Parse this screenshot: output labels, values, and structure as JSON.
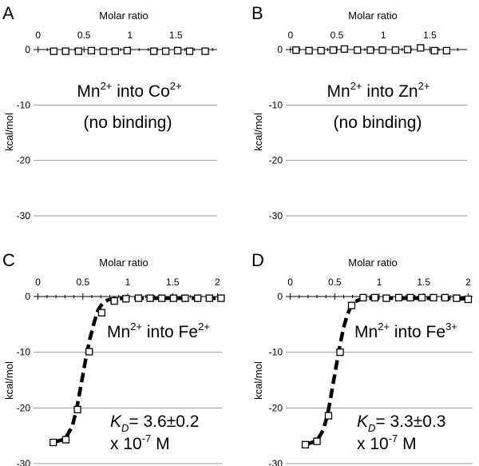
{
  "figure": {
    "background": "#ffffff"
  },
  "chart_data": [
    {
      "panel": "A",
      "type": "scatter",
      "xlabel": "Molar ratio",
      "ylabel": "kcal/mol",
      "xlim": [
        -0.05,
        1.95
      ],
      "ylim": [
        -30,
        0
      ],
      "x_ticks": [
        0,
        0.5,
        1,
        1.5
      ],
      "x_tick_labels": [
        "0",
        "0.5",
        "1",
        "1.5"
      ],
      "y_ticks": [
        0,
        -10,
        -20,
        -30
      ],
      "y_tick_labels": [
        "0",
        "-10",
        "-20",
        "-30"
      ],
      "grid": true,
      "series": [
        {
          "name": "titration",
          "x": [
            0.17,
            0.3,
            0.44,
            0.58,
            0.71,
            0.84,
            0.97,
            1.26,
            1.39,
            1.52,
            1.65,
            1.82
          ],
          "y": [
            -0.3,
            -0.3,
            -0.3,
            -0.2,
            -0.3,
            -0.3,
            -0.2,
            -0.3,
            -0.3,
            -0.2,
            -0.3,
            -0.3
          ]
        }
      ],
      "annotation": {
        "line1_prefix": "Mn",
        "line1_sup1": "2+",
        "line1_mid": " into Co",
        "line1_sup2": "2+",
        "line2": "(no binding)"
      }
    },
    {
      "panel": "B",
      "type": "scatter",
      "xlabel": "Molar ratio",
      "ylabel": "kcal/mol",
      "xlim": [
        -0.05,
        1.9
      ],
      "ylim": [
        -30,
        0
      ],
      "x_ticks": [
        0,
        0.5,
        1,
        1.5
      ],
      "x_tick_labels": [
        "0",
        "0.5",
        "1",
        "1.5"
      ],
      "y_ticks": [
        0,
        -10,
        -20,
        -30
      ],
      "y_tick_labels": [
        "0",
        "-10",
        "-20",
        "-30"
      ],
      "grid": true,
      "series": [
        {
          "name": "titration",
          "x": [
            0.06,
            0.2,
            0.33,
            0.46,
            0.58,
            0.72,
            0.86,
            0.99,
            1.13,
            1.26,
            1.4,
            1.55,
            1.68
          ],
          "y": [
            -0.1,
            -0.2,
            -0.2,
            -0.1,
            0.1,
            -0.1,
            -0.1,
            -0.1,
            -0.1,
            0.0,
            0.3,
            -0.2,
            -0.2
          ]
        }
      ],
      "annotation": {
        "line1_prefix": "Mn",
        "line1_sup1": "2+",
        "line1_mid": " into Zn",
        "line1_sup2": "2+",
        "line2": "(no binding)"
      }
    },
    {
      "panel": "C",
      "type": "scatter",
      "xlabel": "Molar ratio",
      "ylabel": "kcal/mol",
      "xlim": [
        -0.05,
        2.05
      ],
      "ylim": [
        -30,
        0
      ],
      "x_ticks": [
        0,
        0.5,
        1,
        1.5,
        2
      ],
      "x_tick_labels": [
        "0",
        "0.5",
        "1",
        "1.5",
        "2"
      ],
      "y_ticks": [
        0,
        -10,
        -20,
        -30
      ],
      "y_tick_labels": [
        "0",
        "-10",
        "-20",
        "-30"
      ],
      "grid": true,
      "series": [
        {
          "name": "titration",
          "x": [
            0.17,
            0.31,
            0.44,
            0.57,
            0.71,
            0.85,
            0.98,
            1.12,
            1.25,
            1.38,
            1.51,
            1.64,
            1.78,
            1.91,
            2.04
          ],
          "y": [
            -26.2,
            -25.7,
            -20.3,
            -9.9,
            -2.9,
            -0.8,
            -0.4,
            -0.3,
            -0.3,
            -0.3,
            -0.3,
            -0.3,
            -0.3,
            -0.3,
            -0.3
          ]
        },
        {
          "name": "fit",
          "x": [
            0.17,
            0.3,
            0.38,
            0.43,
            0.48,
            0.53,
            0.58,
            0.63,
            0.67,
            0.72,
            0.78,
            0.85,
            1.0,
            1.3,
            1.6,
            2.04
          ],
          "y": [
            -26.2,
            -25.6,
            -23.4,
            -20.3,
            -15.8,
            -11.4,
            -7.5,
            -4.4,
            -2.4,
            -1.2,
            -0.6,
            -0.4,
            -0.3,
            -0.3,
            -0.3,
            -0.3
          ]
        }
      ],
      "annotation": {
        "line1_prefix": "Mn",
        "line1_sup1": "2+",
        "line1_mid": " into Fe",
        "line1_sup2": "2+",
        "kd_symbol": "K",
        "kd_sub": "D",
        "kd_value": "= 3.6±0.2",
        "kd_line2": "x 10",
        "kd_exp": "-7",
        "kd_unit": " M"
      }
    },
    {
      "panel": "D",
      "type": "scatter",
      "xlabel": "Molar ratio",
      "ylabel": "kcal/mol",
      "xlim": [
        -0.05,
        2.05
      ],
      "ylim": [
        -30,
        0
      ],
      "x_ticks": [
        0,
        0.5,
        1,
        1.5,
        2
      ],
      "x_tick_labels": [
        "0",
        "0.5",
        "1",
        "1.5",
        "2"
      ],
      "y_ticks": [
        0,
        -10,
        -20,
        -30
      ],
      "y_tick_labels": [
        "0",
        "-10",
        "-20",
        "-30"
      ],
      "grid": true,
      "series": [
        {
          "name": "titration",
          "x": [
            0.17,
            0.3,
            0.43,
            0.56,
            0.69,
            0.82,
            0.95,
            1.08,
            1.22,
            1.35,
            1.48,
            1.61,
            1.74,
            1.87,
            2.0
          ],
          "y": [
            -26.6,
            -26.0,
            -21.4,
            -10.0,
            -1.6,
            -0.2,
            -0.2,
            -0.3,
            -0.2,
            -0.2,
            -0.2,
            -0.2,
            -0.2,
            -0.3,
            -0.5
          ]
        },
        {
          "name": "fit",
          "x": [
            0.17,
            0.3,
            0.37,
            0.42,
            0.47,
            0.52,
            0.56,
            0.6,
            0.64,
            0.68,
            0.73,
            0.8,
            0.9,
            1.2,
            1.6,
            2.0
          ],
          "y": [
            -26.6,
            -25.9,
            -24.0,
            -21.2,
            -16.8,
            -12.2,
            -8.6,
            -5.6,
            -3.3,
            -1.9,
            -0.9,
            -0.4,
            -0.3,
            -0.3,
            -0.3,
            -0.4
          ]
        }
      ],
      "annotation": {
        "line1_prefix": "Mn",
        "line1_sup1": "2+",
        "line1_mid": " into Fe",
        "line1_sup2": "3+",
        "kd_symbol": "K",
        "kd_sub": "D",
        "kd_value": "= 3.3±0.3",
        "kd_line2": "x 10",
        "kd_exp": "-7",
        "kd_unit": " M"
      }
    }
  ]
}
